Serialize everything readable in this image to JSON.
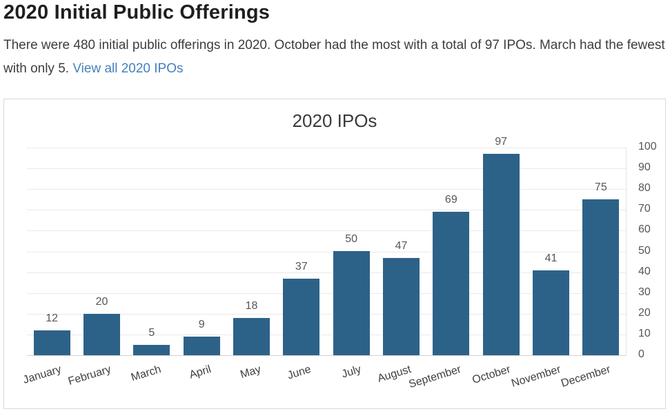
{
  "page": {
    "heading": "2020 Initial Public Offerings",
    "intro_text": "There were 480 initial public offerings in 2020. October had the most with a total of 97 IPOs. March had the fewest with only 5. ",
    "intro_link_label": "View all 2020 IPOs"
  },
  "chart_data": {
    "type": "bar",
    "title": "2020 IPOs",
    "categories": [
      "January",
      "February",
      "March",
      "April",
      "May",
      "June",
      "July",
      "August",
      "September",
      "October",
      "November",
      "December"
    ],
    "values": [
      12,
      20,
      5,
      9,
      18,
      37,
      50,
      47,
      69,
      97,
      41,
      75
    ],
    "xlabel": "",
    "ylabel": "",
    "ylim": [
      0,
      100
    ],
    "ytick_step": 10,
    "yaxis_position": "right",
    "grid": true,
    "data_labels": true,
    "legend": "none"
  },
  "colors": {
    "bar_fill": "#2d6288",
    "gridline": "#e9e9e9",
    "axis_line": "#d2d2d2",
    "card_border": "#d9d9d9",
    "link": "#4380bd",
    "heading_text": "#1f1f1f",
    "body_text": "#3d3d3d",
    "tick_text": "#565656"
  }
}
